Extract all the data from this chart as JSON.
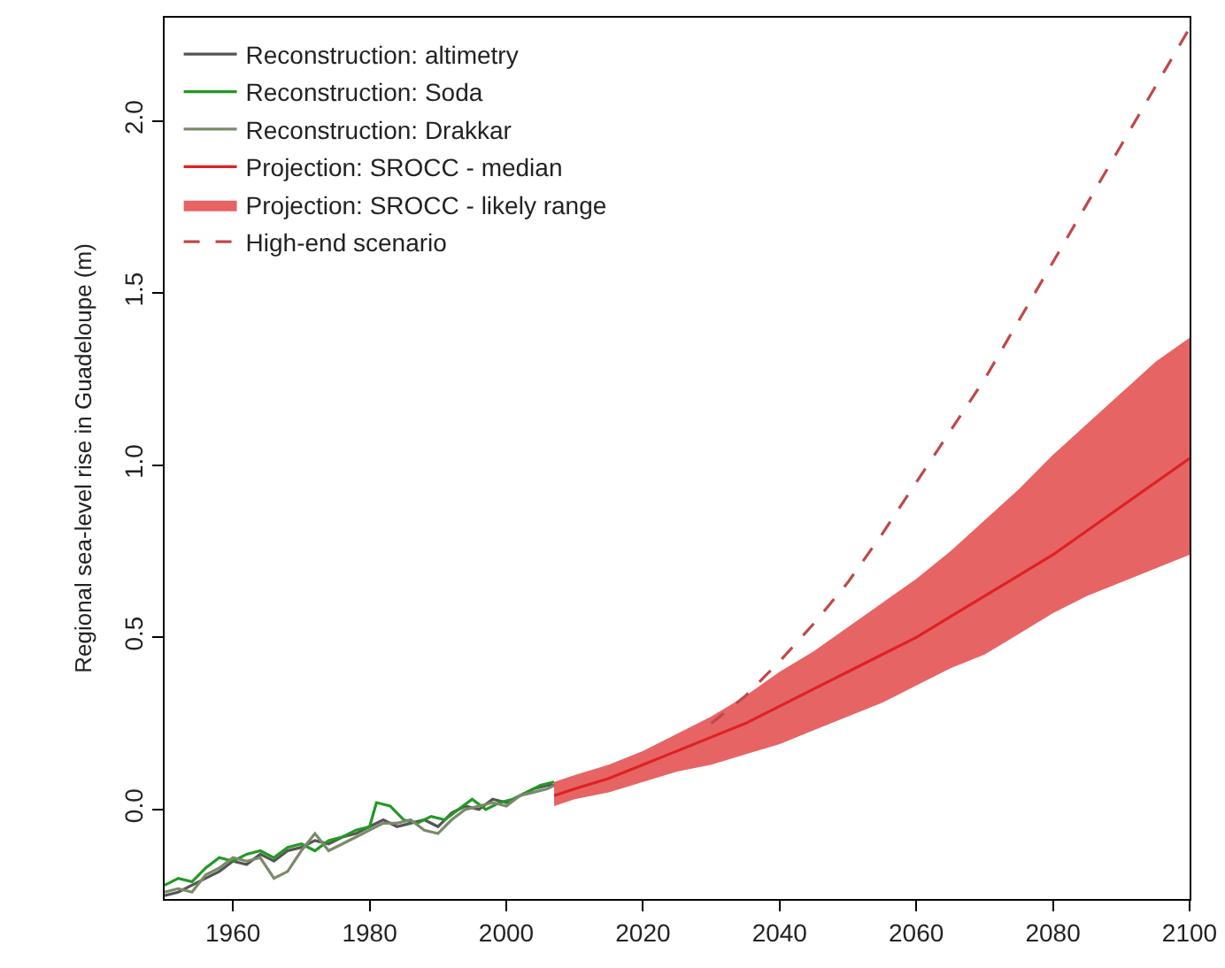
{
  "chart_data": {
    "type": "line",
    "ylabel": "Regional sea-level rise in Guadeloupe (m)",
    "xlim": [
      1950,
      2100
    ],
    "xticks": [
      1960,
      1980,
      2000,
      2020,
      2040,
      2060,
      2080,
      2100
    ],
    "ylim": [
      -0.26,
      2.3
    ],
    "yticks": [
      {
        "value": 0,
        "label": "0.0"
      },
      0.5,
      {
        "value": 1,
        "label": "1.0"
      },
      1.5,
      {
        "value": 2,
        "label": "2.0"
      }
    ],
    "grid": false,
    "legend": "top left",
    "line_style": "solid",
    "marker": "none",
    "annotations": [
      "Projection: SROCC - likely range"
    ],
    "series": [
      {
        "name": "Reconstruction: altimetry",
        "color": "#555555",
        "x": [
          1950,
          1952,
          1954,
          1956,
          1958,
          1960,
          1962,
          1964,
          1966,
          1968,
          1970,
          1972,
          1974,
          1976,
          1978,
          1980,
          1982,
          1984,
          1986,
          1988,
          1990,
          1992,
          1994,
          1996,
          1998,
          2000,
          2002,
          2004,
          2006,
          2007
        ],
        "values": [
          -0.25,
          -0.24,
          -0.22,
          -0.2,
          -0.18,
          -0.15,
          -0.16,
          -0.13,
          -0.15,
          -0.12,
          -0.11,
          -0.09,
          -0.1,
          -0.08,
          -0.07,
          -0.05,
          -0.03,
          -0.05,
          -0.04,
          -0.03,
          -0.05,
          -0.01,
          0.01,
          0,
          0.03,
          0.02,
          0.04,
          0.06,
          0.07,
          0.07
        ]
      },
      {
        "name": "Reconstruction: Soda",
        "color": "#229922",
        "x": [
          1950,
          1952,
          1954,
          1956,
          1958,
          1960,
          1962,
          1964,
          1966,
          1968,
          1970,
          1972,
          1974,
          1976,
          1978,
          1980,
          1981,
          1983,
          1985,
          1987,
          1989,
          1991,
          1993,
          1995,
          1997,
          1999,
          2001,
          2003,
          2005,
          2007
        ],
        "values": [
          -0.22,
          -0.2,
          -0.21,
          -0.17,
          -0.14,
          -0.15,
          -0.13,
          -0.12,
          -0.14,
          -0.11,
          -0.1,
          -0.12,
          -0.09,
          -0.08,
          -0.06,
          -0.05,
          0.02,
          0.01,
          -0.03,
          -0.04,
          -0.02,
          -0.03,
          0,
          0.03,
          0,
          0.02,
          0.03,
          0.05,
          0.07,
          0.08
        ]
      },
      {
        "name": "Reconstruction: Drakkar",
        "color": "#7a8a6a",
        "x": [
          1950,
          1952,
          1954,
          1956,
          1958,
          1960,
          1962,
          1964,
          1966,
          1968,
          1970,
          1972,
          1974,
          1976,
          1978,
          1980,
          1982,
          1984,
          1986,
          1988,
          1990,
          1992,
          1994,
          1996,
          1998,
          2000,
          2002,
          2004,
          2006,
          2007
        ],
        "values": [
          -0.24,
          -0.23,
          -0.24,
          -0.19,
          -0.17,
          -0.14,
          -0.15,
          -0.14,
          -0.2,
          -0.18,
          -0.12,
          -0.07,
          -0.12,
          -0.1,
          -0.08,
          -0.06,
          -0.04,
          -0.04,
          -0.03,
          -0.06,
          -0.07,
          -0.03,
          0,
          0.01,
          0.02,
          0.01,
          0.04,
          0.05,
          0.06,
          0.07
        ]
      },
      {
        "name": "Projection: SROCC - median",
        "color": "#dd2222",
        "x": [
          2007,
          2010,
          2015,
          2020,
          2025,
          2030,
          2035,
          2040,
          2045,
          2050,
          2055,
          2060,
          2065,
          2070,
          2075,
          2080,
          2085,
          2090,
          2095,
          2100
        ],
        "values": [
          0.04,
          0.06,
          0.09,
          0.13,
          0.17,
          0.21,
          0.25,
          0.3,
          0.35,
          0.4,
          0.45,
          0.5,
          0.56,
          0.62,
          0.68,
          0.74,
          0.81,
          0.88,
          0.95,
          1.02
        ],
        "lower": [
          0.01,
          0.03,
          0.05,
          0.08,
          0.11,
          0.13,
          0.16,
          0.19,
          0.23,
          0.27,
          0.31,
          0.36,
          0.41,
          0.45,
          0.51,
          0.57,
          0.62,
          0.66,
          0.7,
          0.74
        ],
        "upper": [
          0.08,
          0.1,
          0.13,
          0.17,
          0.22,
          0.27,
          0.33,
          0.4,
          0.46,
          0.53,
          0.6,
          0.67,
          0.75,
          0.84,
          0.93,
          1.03,
          1.12,
          1.21,
          1.3,
          1.37
        ]
      },
      {
        "name": "High-end scenario",
        "color": "#c04848",
        "line_style": "dashed",
        "x": [
          2030,
          2035,
          2040,
          2045,
          2050,
          2055,
          2060,
          2065,
          2070,
          2075,
          2080,
          2085,
          2090,
          2095,
          2100
        ],
        "values": [
          0.25,
          0.33,
          0.43,
          0.54,
          0.66,
          0.8,
          0.95,
          1.1,
          1.25,
          1.42,
          1.59,
          1.76,
          1.93,
          2.1,
          2.27
        ]
      }
    ]
  }
}
